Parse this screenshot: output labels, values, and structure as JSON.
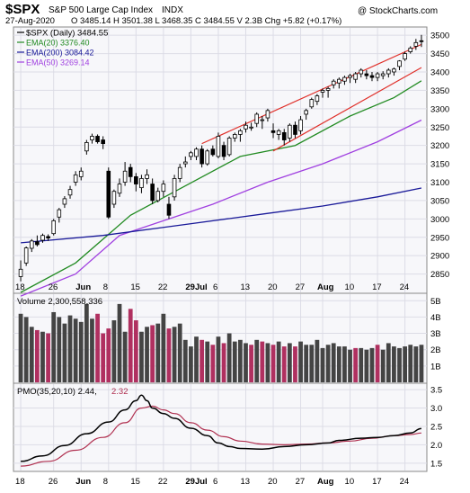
{
  "header": {
    "symbol": "$SPX",
    "name": "S&P 500 Large Cap Index",
    "exchange": "INDX",
    "date": "27-Aug-2020",
    "ohlc": "O 3485.14  H 3501.38  L 3468.35  C 3484.55  V 2.3B  Chg +5.82 (+0.17%)",
    "watermark": "@ StockCharts.com"
  },
  "legend": {
    "price": "$SPX (Daily) 3484.55",
    "ema20": "EMA(20) 3376.40",
    "ema200": "EMA(200) 3084.42",
    "ema50": "EMA(50) 3269.14"
  },
  "volume_label": "Volume 2,300,558,336",
  "pmo_label_main": "PMO(35,20,10) 2.44,",
  "pmo_label_signal": "2.32",
  "colors": {
    "up": "#ffffff",
    "down": "#000000",
    "ema20": "#228b22",
    "ema50": "#a040e0",
    "ema200": "#1a1a99",
    "channel": "#e0302a",
    "vol_up": "#444444",
    "vol_down": "#b03060",
    "pmo": "#000000",
    "pmo_signal": "#b03050",
    "panel_bg": "#f7f7fa",
    "grid": "#dcdce6"
  },
  "chart_data": {
    "type": "candlestick",
    "x_ticks": [
      "18",
      "26",
      "Jun",
      "8",
      "15",
      "22",
      "29Jul",
      "6",
      "13",
      "20",
      "27",
      "Aug",
      "10",
      "17",
      "24"
    ],
    "price": {
      "ylim": [
        2800,
        3520
      ],
      "yticks": [
        2850,
        2900,
        2950,
        3000,
        3050,
        3100,
        3150,
        3200,
        3250,
        3300,
        3350,
        3400,
        3450,
        3500
      ],
      "candles": [
        [
          2843,
          2887,
          2830,
          2863
        ],
        [
          2880,
          2925,
          2872,
          2921
        ],
        [
          2920,
          2945,
          2910,
          2940
        ],
        [
          2938,
          2955,
          2925,
          2930
        ],
        [
          2942,
          2960,
          2935,
          2955
        ],
        [
          2952,
          2958,
          2940,
          2948
        ],
        [
          2960,
          3000,
          2955,
          2995
        ],
        [
          3005,
          3030,
          2990,
          3025
        ],
        [
          3040,
          3062,
          3030,
          3055
        ],
        [
          3065,
          3090,
          3055,
          3080
        ],
        [
          3100,
          3130,
          3090,
          3120
        ],
        [
          3115,
          3140,
          3105,
          3130
        ],
        [
          3185,
          3215,
          3175,
          3208
        ],
        [
          3215,
          3232,
          3205,
          3225
        ],
        [
          3225,
          3230,
          3205,
          3210
        ],
        [
          3215,
          3225,
          3190,
          3205
        ],
        [
          3130,
          3140,
          3000,
          3005
        ],
        [
          3040,
          3080,
          3030,
          3075
        ],
        [
          3070,
          3110,
          3060,
          3095
        ],
        [
          3100,
          3155,
          3090,
          3130
        ],
        [
          3140,
          3150,
          3100,
          3115
        ],
        [
          3115,
          3125,
          3075,
          3095
        ],
        [
          3085,
          3120,
          3070,
          3110
        ],
        [
          3110,
          3135,
          3095,
          3120
        ],
        [
          3095,
          3110,
          3040,
          3050
        ],
        [
          3050,
          3085,
          3045,
          3075
        ],
        [
          3075,
          3105,
          3060,
          3095
        ],
        [
          3040,
          3060,
          3000,
          3010
        ],
        [
          3060,
          3120,
          3050,
          3110
        ],
        [
          3110,
          3150,
          3100,
          3140
        ],
        [
          3150,
          3170,
          3140,
          3155
        ],
        [
          3170,
          3185,
          3160,
          3180
        ],
        [
          3170,
          3195,
          3160,
          3190
        ],
        [
          3190,
          3200,
          3140,
          3150
        ],
        [
          3150,
          3190,
          3145,
          3185
        ],
        [
          3190,
          3200,
          3170,
          3175
        ],
        [
          3170,
          3235,
          3165,
          3225
        ],
        [
          3200,
          3210,
          3160,
          3170
        ],
        [
          3175,
          3225,
          3170,
          3220
        ],
        [
          3220,
          3235,
          3210,
          3230
        ],
        [
          3230,
          3245,
          3210,
          3240
        ],
        [
          3245,
          3265,
          3235,
          3255
        ],
        [
          3250,
          3262,
          3240,
          3250
        ],
        [
          3260,
          3290,
          3250,
          3285
        ],
        [
          3270,
          3280,
          3245,
          3270
        ],
        [
          3275,
          3300,
          3265,
          3295
        ],
        [
          3240,
          3260,
          3220,
          3235
        ],
        [
          3230,
          3245,
          3215,
          3240
        ],
        [
          3235,
          3245,
          3200,
          3215
        ],
        [
          3220,
          3260,
          3210,
          3255
        ],
        [
          3255,
          3265,
          3220,
          3230
        ],
        [
          3240,
          3280,
          3230,
          3270
        ],
        [
          3285,
          3300,
          3270,
          3295
        ],
        [
          3305,
          3330,
          3300,
          3325
        ],
        [
          3320,
          3340,
          3310,
          3335
        ],
        [
          3345,
          3355,
          3330,
          3350
        ],
        [
          3350,
          3360,
          3330,
          3355
        ],
        [
          3365,
          3380,
          3355,
          3375
        ],
        [
          3370,
          3385,
          3355,
          3380
        ],
        [
          3375,
          3390,
          3365,
          3385
        ],
        [
          3385,
          3395,
          3370,
          3390
        ],
        [
          3380,
          3400,
          3370,
          3395
        ],
        [
          3395,
          3410,
          3385,
          3405
        ],
        [
          3395,
          3405,
          3380,
          3390
        ],
        [
          3390,
          3400,
          3375,
          3385
        ],
        [
          3385,
          3400,
          3375,
          3395
        ],
        [
          3390,
          3402,
          3380,
          3395
        ],
        [
          3395,
          3410,
          3385,
          3405
        ],
        [
          3400,
          3412,
          3390,
          3408
        ],
        [
          3415,
          3432,
          3405,
          3430
        ],
        [
          3435,
          3455,
          3430,
          3450
        ],
        [
          3455,
          3470,
          3450,
          3465
        ],
        [
          3470,
          3490,
          3460,
          3480
        ],
        [
          3485,
          3501,
          3468,
          3484
        ]
      ]
    },
    "ema": [
      {
        "name": "EMA(20)",
        "key": "ema20",
        "points": [
          [
            0,
            2800
          ],
          [
            10,
            2880
          ],
          [
            20,
            3010
          ],
          [
            30,
            3090
          ],
          [
            40,
            3170
          ],
          [
            50,
            3200
          ],
          [
            60,
            3280
          ],
          [
            68,
            3330
          ],
          [
            73,
            3376
          ]
        ]
      },
      {
        "name": "EMA(50)",
        "key": "ema50",
        "points": [
          [
            0,
            2790
          ],
          [
            10,
            2850
          ],
          [
            18,
            2955
          ],
          [
            25,
            2990
          ],
          [
            35,
            3040
          ],
          [
            45,
            3100
          ],
          [
            55,
            3150
          ],
          [
            65,
            3210
          ],
          [
            73,
            3269
          ]
        ]
      },
      {
        "name": "EMA(200)",
        "key": "ema200",
        "points": [
          [
            0,
            2935
          ],
          [
            15,
            2955
          ],
          [
            30,
            2985
          ],
          [
            45,
            3015
          ],
          [
            55,
            3035
          ],
          [
            65,
            3060
          ],
          [
            73,
            3084
          ]
        ]
      }
    ],
    "channel_lines": [
      [
        [
          33,
          3205
        ],
        [
          73,
          3475
        ]
      ],
      [
        [
          46,
          3185
        ],
        [
          73,
          3412
        ]
      ]
    ],
    "volume": {
      "ylim": [
        0,
        5.4
      ],
      "yticks": [
        1,
        2,
        3,
        4,
        5
      ],
      "ytick_labels": [
        "1B",
        "2B",
        "3B",
        "4B",
        "5B"
      ],
      "values": [
        4.2,
        4.0,
        3.4,
        3.2,
        3.1,
        3.0,
        4.3,
        4.0,
        3.6,
        4.1,
        3.9,
        3.7,
        4.8,
        3.9,
        4.2,
        3.0,
        3.3,
        3.8,
        4.8,
        3.1,
        4.5,
        3.8,
        3.1,
        3.4,
        3.5,
        3.6,
        4.2,
        3.3,
        3.4,
        3.6,
        2.6,
        2.2,
        2.8,
        2.6,
        2.5,
        2.3,
        2.8,
        2.4,
        3.0,
        2.5,
        2.6,
        2.4,
        2.3,
        2.6,
        2.5,
        2.4,
        2.3,
        2.5,
        2.2,
        2.4,
        2.2,
        2.5,
        2.3,
        2.3,
        2.6,
        2.1,
        2.3,
        2.4,
        2.2,
        2.2,
        2.0,
        2.1,
        2.1,
        2.0,
        2.1,
        2.3,
        2.0,
        2.4,
        2.2,
        2.1,
        2.2,
        2.3,
        2.2,
        2.3
      ],
      "down": [
        false,
        false,
        false,
        true,
        false,
        true,
        false,
        false,
        false,
        false,
        false,
        false,
        false,
        false,
        true,
        true,
        true,
        false,
        false,
        false,
        true,
        true,
        false,
        false,
        true,
        false,
        false,
        true,
        false,
        false,
        false,
        false,
        false,
        true,
        false,
        true,
        false,
        true,
        false,
        false,
        false,
        false,
        true,
        false,
        true,
        false,
        true,
        false,
        true,
        false,
        true,
        false,
        false,
        false,
        false,
        false,
        false,
        false,
        false,
        false,
        false,
        true,
        false,
        false,
        false,
        true,
        false,
        false,
        false,
        false,
        false,
        false,
        false,
        false
      ]
    },
    "pmo": {
      "ylim": [
        1.3,
        3.65
      ],
      "yticks": [
        1.5,
        2.0,
        2.5,
        3.0,
        3.5
      ],
      "ytick_labels": [
        "1.5",
        "2.0",
        "2.5",
        "3.0",
        "3.5"
      ],
      "pmo_points": [
        [
          0,
          1.55
        ],
        [
          4,
          1.7
        ],
        [
          8,
          1.98
        ],
        [
          12,
          2.3
        ],
        [
          16,
          2.62
        ],
        [
          19,
          2.95
        ],
        [
          21,
          3.2
        ],
        [
          22,
          3.35
        ],
        [
          23,
          3.2
        ],
        [
          24,
          3.0
        ],
        [
          26,
          2.85
        ],
        [
          28,
          2.72
        ],
        [
          31,
          2.45
        ],
        [
          34,
          2.25
        ],
        [
          36,
          2.05
        ],
        [
          38,
          1.95
        ],
        [
          40,
          1.9
        ],
        [
          44,
          1.88
        ],
        [
          48,
          1.95
        ],
        [
          52,
          2.0
        ],
        [
          56,
          2.05
        ],
        [
          58,
          2.12
        ],
        [
          62,
          2.18
        ],
        [
          65,
          2.2
        ],
        [
          68,
          2.25
        ],
        [
          71,
          2.32
        ],
        [
          73,
          2.44
        ]
      ],
      "signal_points": [
        [
          0,
          1.42
        ],
        [
          5,
          1.55
        ],
        [
          10,
          1.85
        ],
        [
          15,
          2.2
        ],
        [
          19,
          2.6
        ],
        [
          22,
          3.0
        ],
        [
          24,
          3.05
        ],
        [
          26,
          2.95
        ],
        [
          28,
          2.85
        ],
        [
          31,
          2.6
        ],
        [
          34,
          2.4
        ],
        [
          37,
          2.22
        ],
        [
          40,
          2.1
        ],
        [
          44,
          2.02
        ],
        [
          48,
          2.0
        ],
        [
          52,
          2.02
        ],
        [
          56,
          2.05
        ],
        [
          60,
          2.1
        ],
        [
          64,
          2.18
        ],
        [
          68,
          2.25
        ],
        [
          71,
          2.28
        ],
        [
          73,
          2.32
        ]
      ]
    }
  }
}
